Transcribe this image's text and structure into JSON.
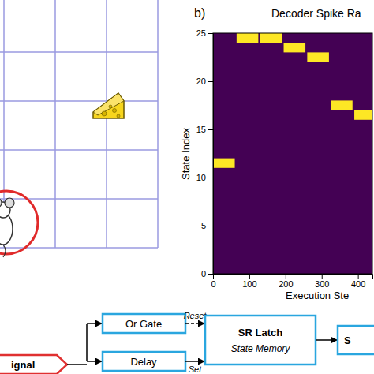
{
  "panel_label": "b)",
  "chart_data": {
    "type": "heatmap",
    "title": "Decoder Spike Ra",
    "x_label": "Execution Ste",
    "y_label": "State Index",
    "xlim": [
      0,
      440
    ],
    "ylim": [
      0,
      25
    ],
    "xticks": [
      0,
      100,
      200,
      300,
      400
    ],
    "yticks": [
      0,
      5,
      10,
      15,
      20,
      25
    ],
    "color": "#fde725",
    "cells": [
      {
        "x0": 0,
        "x1": 60,
        "y0": 11,
        "y1": 12
      },
      {
        "x0": 65,
        "x1": 125,
        "y0": 24,
        "y1": 25
      },
      {
        "x0": 130,
        "x1": 190,
        "y0": 24,
        "y1": 25
      },
      {
        "x0": 195,
        "x1": 255,
        "y0": 23,
        "y1": 24
      },
      {
        "x0": 260,
        "x1": 320,
        "y0": 22,
        "y1": 23
      },
      {
        "x0": 325,
        "x1": 385,
        "y0": 17,
        "y1": 18
      },
      {
        "x0": 390,
        "x1": 450,
        "y0": 16,
        "y1": 17
      }
    ]
  },
  "diagram": {
    "nodes": [
      {
        "label": "ignal"
      },
      {
        "label": "Or Gate"
      },
      {
        "label": "Delay"
      },
      {
        "label": "SR Latch",
        "sublabel": "State Memory"
      },
      {
        "label": "S"
      }
    ],
    "edges": [
      {
        "label": "Reset"
      },
      {
        "label": "Set"
      }
    ]
  }
}
